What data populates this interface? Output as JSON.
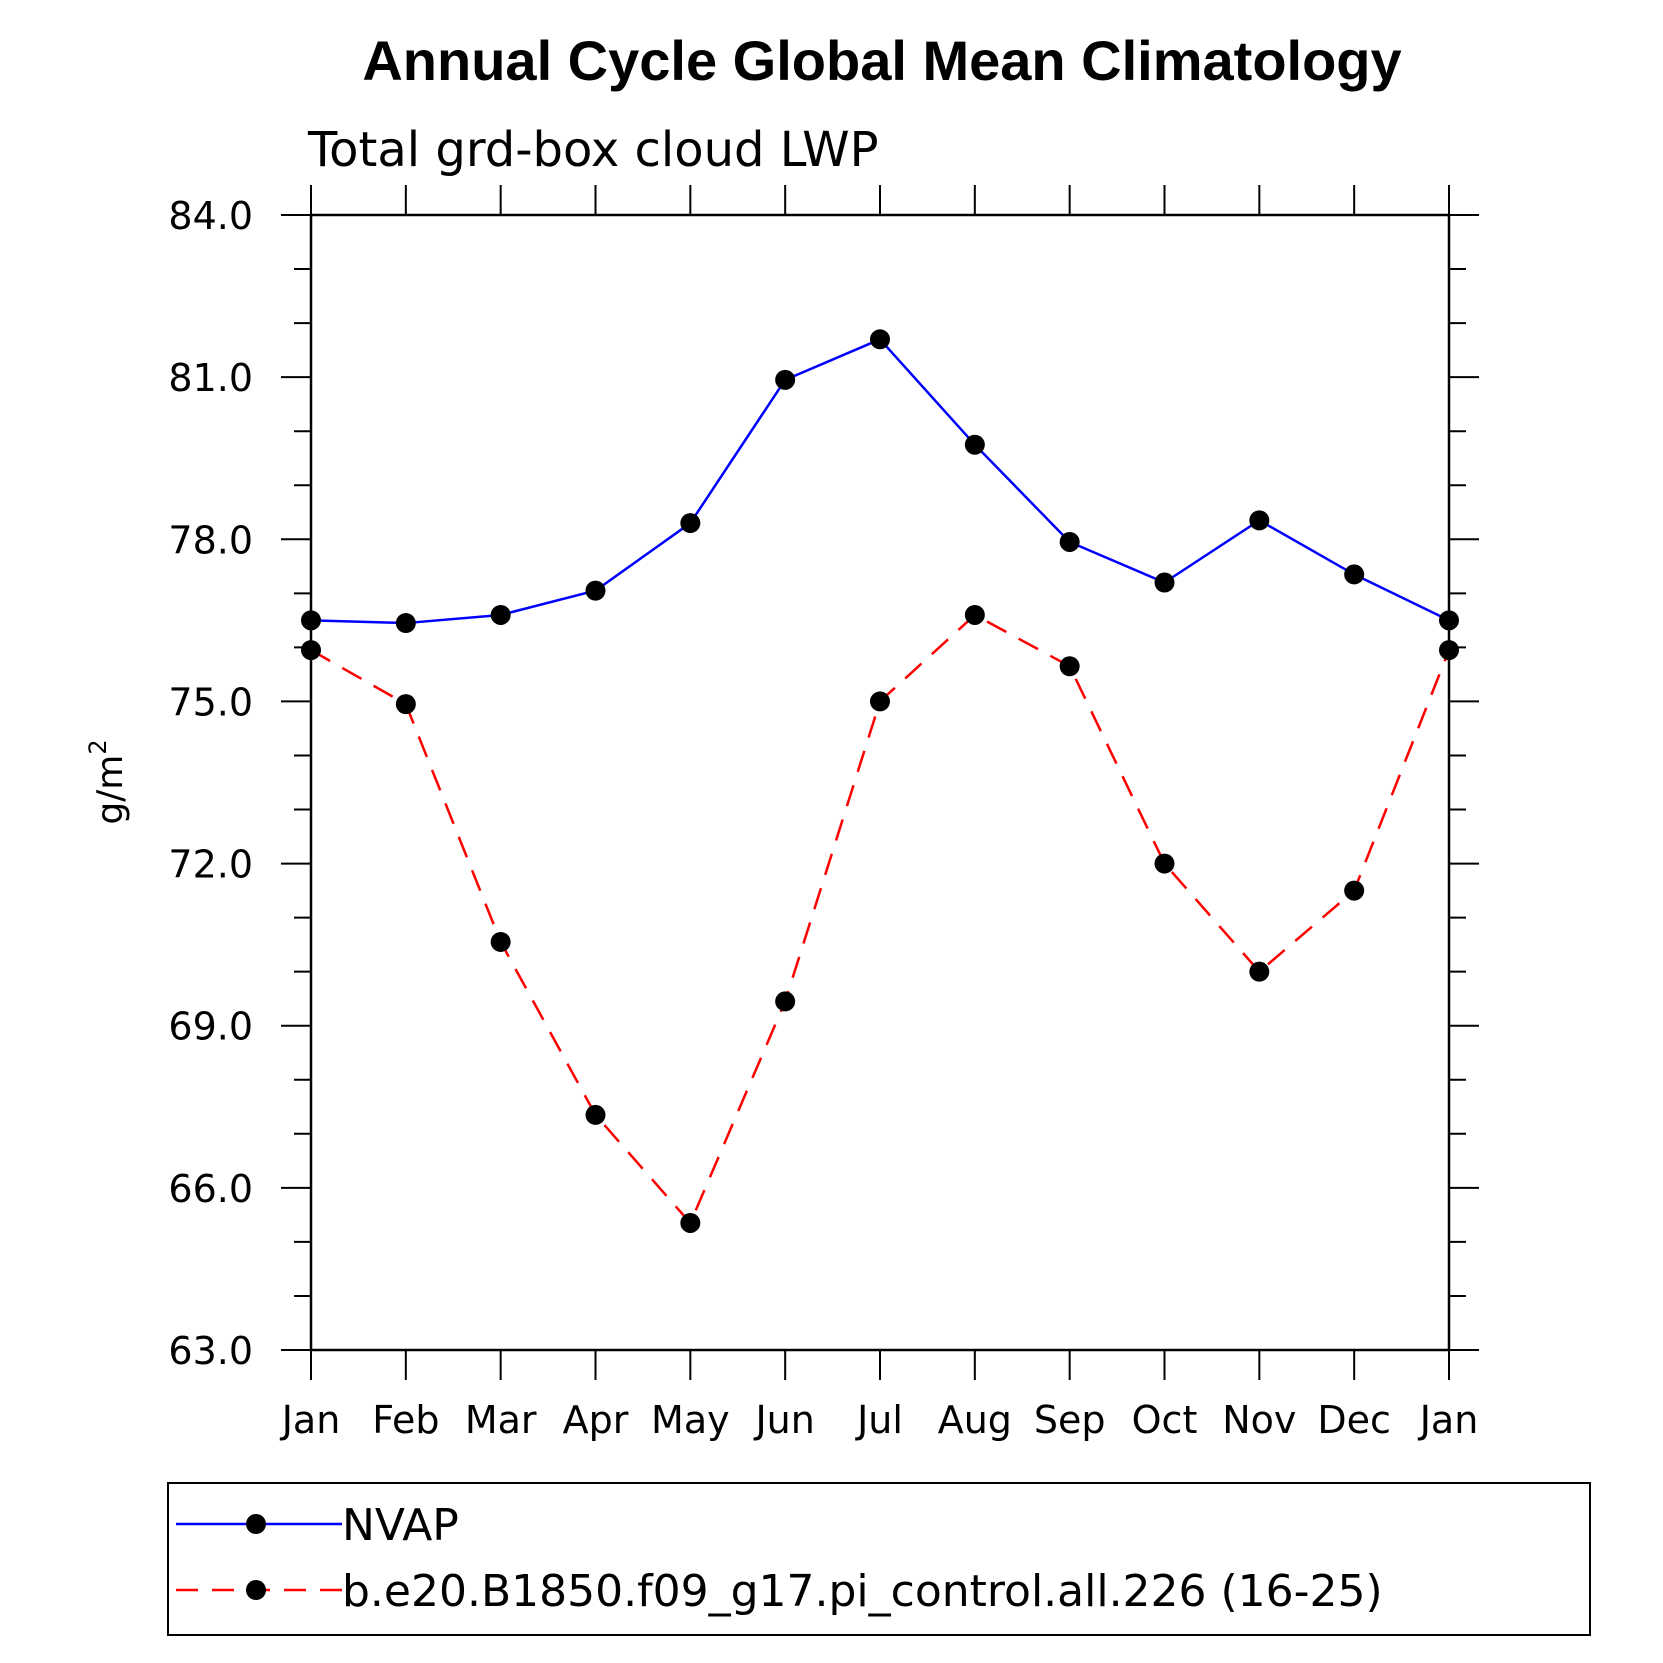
{
  "chart_data": {
    "type": "line",
    "title": "Annual Cycle Global Mean Climatology",
    "subtitle": "Total grd-box cloud LWP",
    "ylabel": "g/m",
    "ylabel_sup": "2",
    "ylim": [
      63.0,
      84.0
    ],
    "yticks": [
      63.0,
      66.0,
      69.0,
      72.0,
      75.0,
      78.0,
      81.0,
      84.0
    ],
    "ytick_labels": [
      "63.0",
      "66.0",
      "69.0",
      "72.0",
      "75.0",
      "78.0",
      "81.0",
      "84.0"
    ],
    "categories": [
      "Jan",
      "Feb",
      "Mar",
      "Apr",
      "May",
      "Jun",
      "Jul",
      "Aug",
      "Sep",
      "Oct",
      "Nov",
      "Dec",
      "Jan"
    ],
    "series": [
      {
        "name": "NVAP",
        "color": "#0000ff",
        "dash": "solid",
        "values": [
          76.5,
          76.45,
          76.6,
          77.05,
          78.3,
          80.95,
          81.7,
          79.75,
          77.95,
          77.2,
          78.35,
          77.35,
          76.5
        ]
      },
      {
        "name": "b.e20.B1850.f09_g17.pi_control.all.226 (16-25)",
        "color": "#ff0000",
        "dash": "dashed",
        "values": [
          75.95,
          74.95,
          70.55,
          67.35,
          65.35,
          69.45,
          75.0,
          76.6,
          75.65,
          72.0,
          70.0,
          71.5,
          75.95
        ]
      }
    ],
    "grid": false,
    "legend_position": "bottom"
  }
}
